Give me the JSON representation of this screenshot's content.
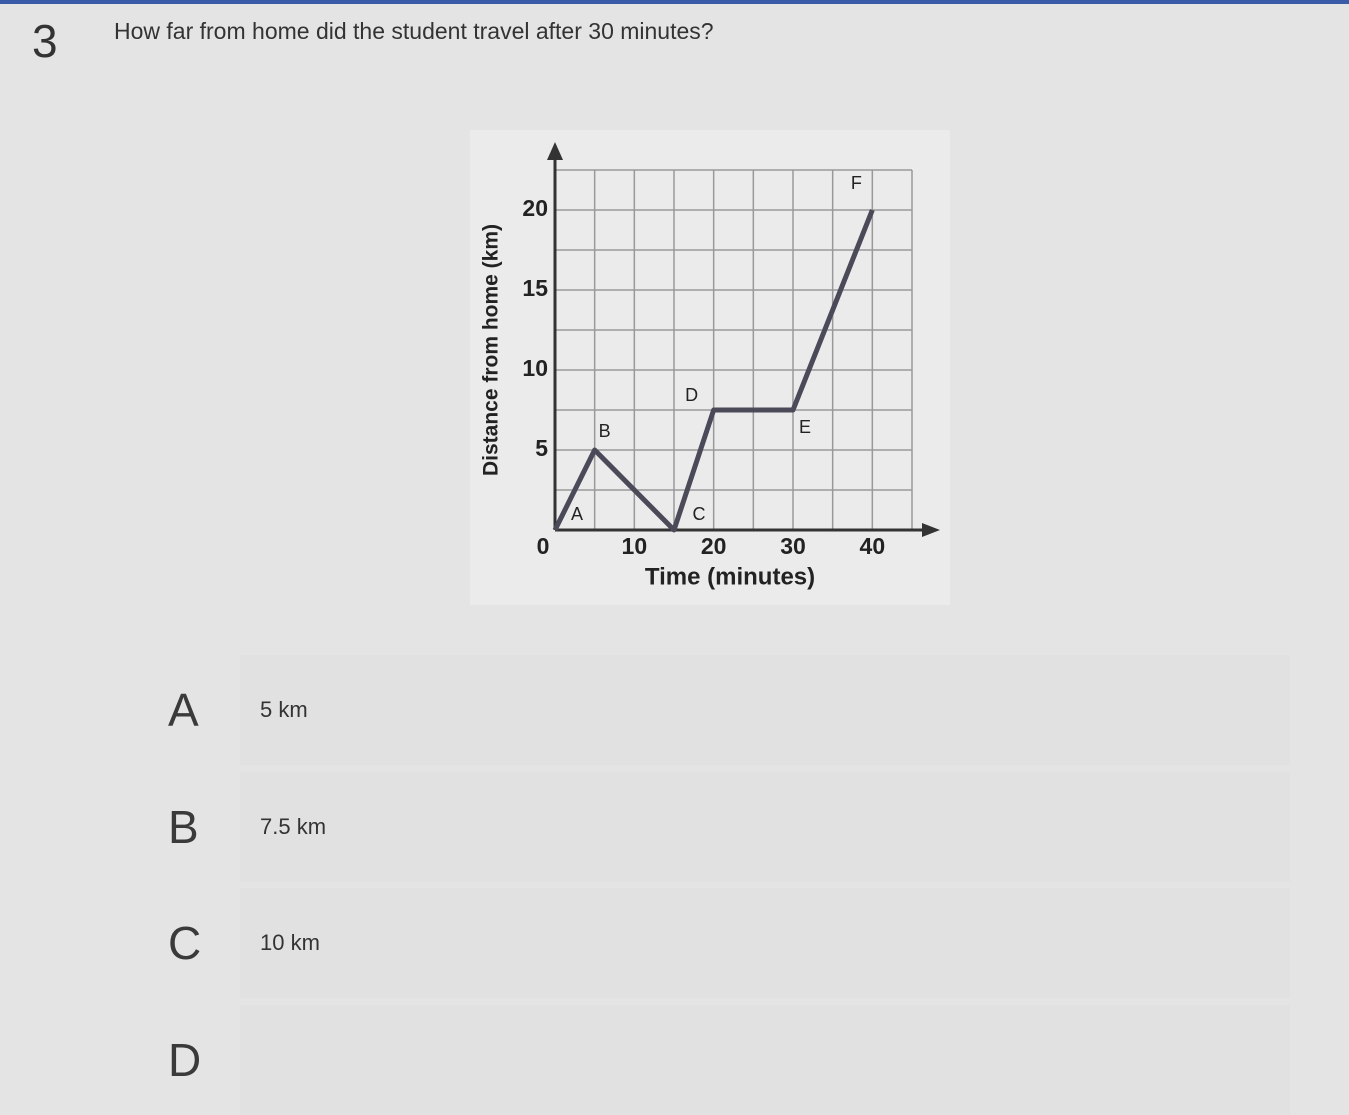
{
  "question": {
    "number": "3",
    "text": "How far from home did the student travel after 30 minutes?"
  },
  "chart_data": {
    "type": "line",
    "xlabel": "Time (minutes)",
    "ylabel": "Distance from home (km)",
    "x": [
      0,
      5,
      15,
      20,
      30,
      40
    ],
    "series": [
      {
        "color": "#4a4a58",
        "values": [
          0,
          5,
          0,
          7.5,
          7.5,
          20
        ]
      }
    ],
    "point_labels": [
      "A",
      "B",
      "C",
      "D",
      "E",
      "F"
    ],
    "xlim": [
      0,
      45
    ],
    "ylim": [
      0,
      22.5
    ],
    "xticks": [
      0,
      10,
      20,
      30,
      40
    ],
    "yticks": [
      5,
      10,
      15,
      20
    ],
    "xgrid": [
      0,
      5,
      10,
      15,
      20,
      25,
      30,
      35,
      40,
      45
    ],
    "ygrid": [
      0,
      2.5,
      5,
      7.5,
      10,
      12.5,
      15,
      17.5,
      20,
      22.5
    ],
    "grid": true
  },
  "options": [
    {
      "letter": "A",
      "text": "5 km"
    },
    {
      "letter": "B",
      "text": "7.5 km"
    },
    {
      "letter": "C",
      "text": "10 km"
    },
    {
      "letter": "D",
      "text": ""
    }
  ]
}
